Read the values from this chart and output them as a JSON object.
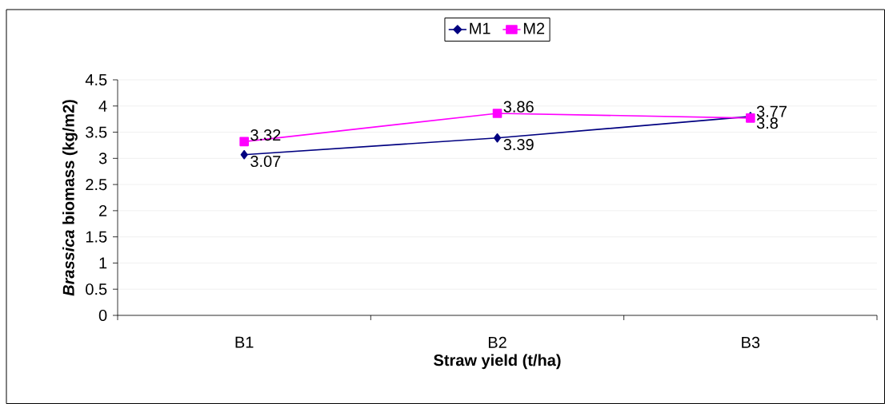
{
  "chart_data": {
    "type": "line",
    "xlabel": "Straw yield (t/ha)",
    "ylabel": "*Brassica* biomass (kg/m2)",
    "categories": [
      "B1",
      "B2",
      "B3"
    ],
    "series": [
      {
        "name": "M1",
        "color": "#000080",
        "marker": "diamond",
        "values": [
          3.07,
          3.39,
          3.8
        ]
      },
      {
        "name": "M2",
        "color": "#ff00ff",
        "marker": "square",
        "values": [
          3.32,
          3.86,
          3.77
        ]
      }
    ],
    "ylim": [
      0,
      4.5
    ],
    "yticks": [
      0,
      0.5,
      1,
      1.5,
      2,
      2.5,
      3,
      3.5,
      4,
      4.5
    ],
    "grid": "y",
    "legend": "top",
    "data_labels": true
  }
}
